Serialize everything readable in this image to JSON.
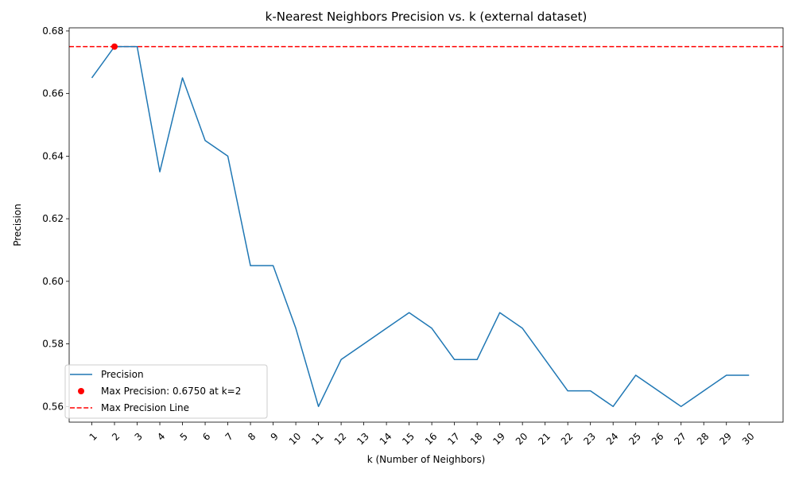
{
  "chart_data": {
    "type": "line",
    "title": "k-Nearest Neighbors Precision vs. k (external dataset)",
    "xlabel": "k (Number of Neighbors)",
    "ylabel": "Precision",
    "x": [
      1,
      2,
      3,
      4,
      5,
      6,
      7,
      8,
      9,
      10,
      11,
      12,
      13,
      14,
      15,
      16,
      17,
      18,
      19,
      20,
      21,
      22,
      23,
      24,
      25,
      26,
      27,
      28,
      29,
      30
    ],
    "xlim": [
      0,
      31.5
    ],
    "ylim": [
      0.555,
      0.681
    ],
    "yticks": [
      0.56,
      0.58,
      0.6,
      0.62,
      0.64,
      0.66,
      0.68
    ],
    "ytick_labels": [
      "0.56",
      "0.58",
      "0.60",
      "0.62",
      "0.64",
      "0.66",
      "0.68"
    ],
    "series": [
      {
        "name": "Precision",
        "color": "#1f77b4",
        "values": [
          0.665,
          0.675,
          0.675,
          0.635,
          0.665,
          0.645,
          0.64,
          0.605,
          0.605,
          0.585,
          0.56,
          0.575,
          0.58,
          0.585,
          0.59,
          0.585,
          0.575,
          0.575,
          0.59,
          0.585,
          0.575,
          0.565,
          0.565,
          0.56,
          0.57,
          0.565,
          0.56,
          0.565,
          0.57,
          0.57
        ]
      }
    ],
    "max_point": {
      "name": "Max Precision: 0.6750 at k=2",
      "x": 2,
      "y": 0.675,
      "color": "#ff0000"
    },
    "max_line": {
      "name": "Max Precision Line",
      "y": 0.675,
      "color": "#ff0000"
    },
    "grid": false,
    "legend_position": "lower-left"
  }
}
